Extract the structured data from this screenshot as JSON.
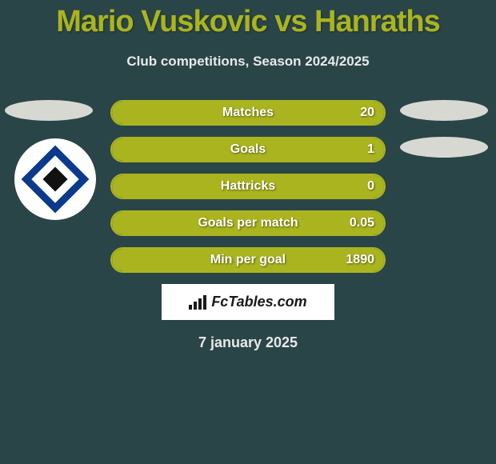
{
  "title": "Mario Vuskovic vs Hanraths",
  "subtitle": "Club competitions, Season 2024/2025",
  "footer_date": "7 january 2025",
  "branding_text": "FcTables.com",
  "colors": {
    "accent": "#aab41f",
    "background": "#2a4548",
    "ellipse": "#d8d8d3",
    "club_badge_outer": "#0b3a8c",
    "club_badge_inner": "#111"
  },
  "stats": [
    {
      "label": "Matches",
      "value_right": "20",
      "fill_pct": 100
    },
    {
      "label": "Goals",
      "value_right": "1",
      "fill_pct": 100
    },
    {
      "label": "Hattricks",
      "value_right": "0",
      "fill_pct": 100
    },
    {
      "label": "Goals per match",
      "value_right": "0.05",
      "fill_pct": 100
    },
    {
      "label": "Min per goal",
      "value_right": "1890",
      "fill_pct": 100
    }
  ],
  "left_ellipses": 1,
  "right_ellipses": 2,
  "show_club_badge_left": true
}
